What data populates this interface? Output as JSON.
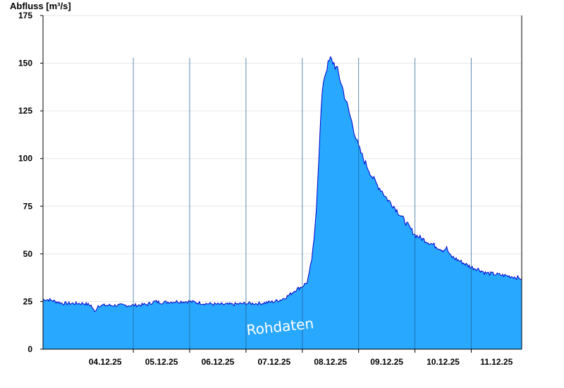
{
  "chart_data": {
    "type": "area",
    "title": "",
    "ylabel": "Abfluss [m³/s]",
    "xlabel": "",
    "ylim": [
      0,
      175
    ],
    "yticks": [
      0,
      25,
      50,
      75,
      100,
      125,
      150,
      175
    ],
    "xlim": [
      "2025-12-03T09:30",
      "2025-12-11T21:30"
    ],
    "date_ticks": [
      {
        "date": "2025-12-04T00:00",
        "label": "04.12.25"
      },
      {
        "date": "2025-12-05T00:00",
        "label": "05.12.25"
      },
      {
        "date": "2025-12-06T00:00",
        "label": "06.12.25"
      },
      {
        "date": "2025-12-07T00:00",
        "label": "07.12.25"
      },
      {
        "date": "2025-12-08T00:00",
        "label": "08.12.25"
      },
      {
        "date": "2025-12-09T00:00",
        "label": "09.12.25"
      },
      {
        "date": "2025-12-10T00:00",
        "label": "10.12.25"
      },
      {
        "date": "2025-12-11T00:00",
        "label": "11.12.25"
      }
    ],
    "grid": true,
    "fill_color": "#29a8ff",
    "line_color": "#0000cc",
    "annotation": "Rohdaten",
    "series": [
      {
        "points": [
          [
            "2025-12-03T09:30",
            26
          ],
          [
            "2025-12-03T12:00",
            26
          ],
          [
            "2025-12-03T15:00",
            25
          ],
          [
            "2025-12-03T18:00",
            24
          ],
          [
            "2025-12-03T21:00",
            24
          ],
          [
            "2025-12-04T00:00",
            24
          ],
          [
            "2025-12-04T03:00",
            24
          ],
          [
            "2025-12-04T06:00",
            23
          ],
          [
            "2025-12-04T07:30",
            19.5
          ],
          [
            "2025-12-04T09:00",
            23
          ],
          [
            "2025-12-04T12:00",
            23
          ],
          [
            "2025-12-04T18:00",
            23
          ],
          [
            "2025-12-05T00:00",
            23
          ],
          [
            "2025-12-05T06:00",
            23.5
          ],
          [
            "2025-12-05T09:00",
            25
          ],
          [
            "2025-12-05T12:00",
            24.5
          ],
          [
            "2025-12-05T18:00",
            25
          ],
          [
            "2025-12-06T00:00",
            25
          ],
          [
            "2025-12-06T06:00",
            24
          ],
          [
            "2025-12-06T12:00",
            23.5
          ],
          [
            "2025-12-06T18:00",
            23.5
          ],
          [
            "2025-12-07T00:00",
            24
          ],
          [
            "2025-12-07T06:00",
            24
          ],
          [
            "2025-12-07T12:00",
            25
          ],
          [
            "2025-12-07T15:00",
            26
          ],
          [
            "2025-12-07T18:00",
            28
          ],
          [
            "2025-12-07T21:00",
            31
          ],
          [
            "2025-12-08T00:00",
            33
          ],
          [
            "2025-12-08T02:00",
            35
          ],
          [
            "2025-12-08T03:00",
            40
          ],
          [
            "2025-12-08T04:00",
            47
          ],
          [
            "2025-12-08T05:00",
            57
          ],
          [
            "2025-12-08T06:00",
            75
          ],
          [
            "2025-12-08T07:00",
            100
          ],
          [
            "2025-12-08T08:00",
            125
          ],
          [
            "2025-12-08T09:00",
            141
          ],
          [
            "2025-12-08T10:30",
            148
          ],
          [
            "2025-12-08T12:00",
            152
          ],
          [
            "2025-12-08T13:30",
            150
          ],
          [
            "2025-12-08T15:00",
            146
          ],
          [
            "2025-12-08T16:30",
            140
          ],
          [
            "2025-12-08T18:00",
            133
          ],
          [
            "2025-12-08T20:00",
            124
          ],
          [
            "2025-12-08T22:00",
            115
          ],
          [
            "2025-12-09T00:00",
            106
          ],
          [
            "2025-12-09T02:00",
            100
          ],
          [
            "2025-12-09T04:00",
            95
          ],
          [
            "2025-12-09T06:00",
            90
          ],
          [
            "2025-12-09T08:00",
            86
          ],
          [
            "2025-12-09T10:00",
            83
          ],
          [
            "2025-12-09T12:00",
            79
          ],
          [
            "2025-12-09T15:00",
            75
          ],
          [
            "2025-12-09T18:00",
            70
          ],
          [
            "2025-12-09T21:00",
            65
          ],
          [
            "2025-12-10T00:00",
            60
          ],
          [
            "2025-12-10T03:00",
            58
          ],
          [
            "2025-12-10T06:00",
            56
          ],
          [
            "2025-12-10T09:00",
            54
          ],
          [
            "2025-12-10T12:00",
            52
          ],
          [
            "2025-12-10T13:30",
            53
          ],
          [
            "2025-12-10T15:00",
            49
          ],
          [
            "2025-12-10T18:00",
            47
          ],
          [
            "2025-12-10T21:00",
            45
          ],
          [
            "2025-12-11T00:00",
            43
          ],
          [
            "2025-12-11T03:00",
            42
          ],
          [
            "2025-12-11T06:00",
            40
          ],
          [
            "2025-12-11T12:00",
            39
          ],
          [
            "2025-12-11T18:00",
            38
          ],
          [
            "2025-12-11T21:30",
            37
          ]
        ]
      }
    ]
  }
}
